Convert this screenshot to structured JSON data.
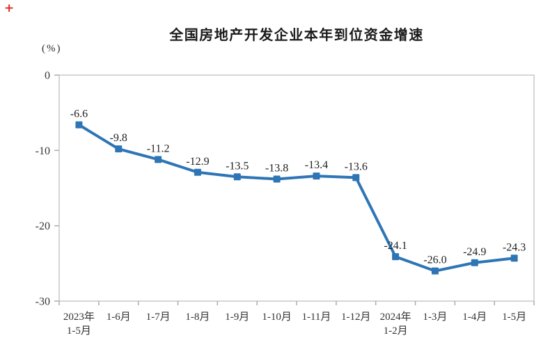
{
  "header": {
    "plus_icon": "+"
  },
  "chart_data": {
    "type": "line",
    "title": "全国房地产开发企业本年到位资金增速",
    "unit_label": "(%)",
    "categories": [
      [
        "2023年",
        "1-5月"
      ],
      [
        "1-6月"
      ],
      [
        "1-7月"
      ],
      [
        "1-8月"
      ],
      [
        "1-9月"
      ],
      [
        "1-10月"
      ],
      [
        "1-11月"
      ],
      [
        "1-12月"
      ],
      [
        "2024年",
        "1-2月"
      ],
      [
        "1-3月"
      ],
      [
        "1-4月"
      ],
      [
        "1-5月"
      ]
    ],
    "values": [
      -6.6,
      -9.8,
      -11.2,
      -12.9,
      -13.5,
      -13.8,
      -13.4,
      -13.6,
      -24.1,
      -26.0,
      -24.9,
      -24.3
    ],
    "value_labels": [
      "-6.6",
      "-9.8",
      "-11.2",
      "-12.9",
      "-13.5",
      "-13.8",
      "-13.4",
      "-13.6",
      "-24.1",
      "-26.0",
      "-24.9",
      "-24.3"
    ],
    "ylim": [
      -30,
      0
    ],
    "yticks": [
      0,
      -10,
      -20,
      -30
    ],
    "ytick_labels": [
      "0",
      "-10",
      "-20",
      "-30"
    ],
    "grid": false,
    "legend": "none",
    "marker": "square",
    "line_color": "#2E75B6",
    "frame_color": "#C9C9C9",
    "tick_color": "#ABABAB",
    "axis_text_color": "#333333",
    "label_text_color": "#1f1f1f"
  }
}
